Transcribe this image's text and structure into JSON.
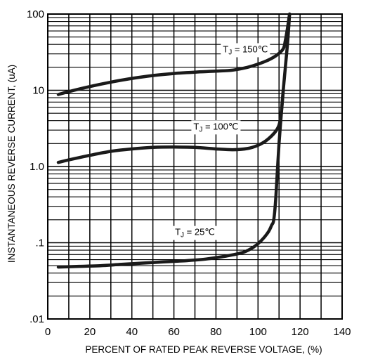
{
  "chart_data": {
    "type": "line",
    "title": "",
    "xlabel": "PERCENT OF RATED PEAK REVERSE VOLTAGE, (%)",
    "ylabel": "INSTANTANEOUS REVERSE CURRENT, (uA)",
    "xlim": [
      0,
      140
    ],
    "ylim": [
      0.01,
      100
    ],
    "yscale": "log",
    "grid": true,
    "x_ticks": [
      0,
      20,
      40,
      60,
      80,
      100,
      120,
      140
    ],
    "x_tick_labels": [
      "0",
      "20",
      "40",
      "60",
      "80",
      "100",
      "120",
      "140"
    ],
    "y_ticks": [
      0.01,
      0.1,
      1,
      10,
      100
    ],
    "y_tick_labels": [
      ".01",
      ".1",
      "1.0",
      "10",
      "100"
    ],
    "curve_labels": [
      {
        "pre": "T",
        "sub": "J",
        "post": " = 150℃",
        "x": 94,
        "y": 35
      },
      {
        "pre": "T",
        "sub": "J",
        "post": " = 100℃",
        "x": 80,
        "y": 3.4
      },
      {
        "pre": "T",
        "sub": "J",
        "post": " = 25℃",
        "x": 70,
        "y": 0.14
      }
    ],
    "series": [
      {
        "x": [
          5,
          10,
          20,
          30,
          40,
          50,
          60,
          70,
          80,
          88,
          95,
          100,
          105,
          109,
          112,
          113,
          114,
          115
        ],
        "y": [
          8.8,
          9.6,
          11.2,
          12.8,
          14.3,
          15.6,
          16.6,
          17.3,
          17.8,
          18.4,
          20,
          22,
          25,
          29,
          35,
          45,
          65,
          100
        ]
      },
      {
        "x": [
          5,
          10,
          20,
          30,
          40,
          50,
          60,
          70,
          80,
          88,
          95,
          100,
          104,
          108,
          110,
          111,
          112
        ],
        "y": [
          1.13,
          1.22,
          1.4,
          1.58,
          1.7,
          1.78,
          1.8,
          1.78,
          1.7,
          1.66,
          1.72,
          1.9,
          2.2,
          2.8,
          3.5,
          5,
          10
        ]
      },
      {
        "x": [
          5,
          15,
          25,
          35,
          45,
          55,
          65,
          75,
          85,
          93,
          98,
          102,
          105,
          106.5,
          107.5,
          108.5,
          110,
          112,
          114,
          115
        ],
        "y": [
          0.048,
          0.049,
          0.05,
          0.052,
          0.054,
          0.056,
          0.058,
          0.061,
          0.067,
          0.075,
          0.088,
          0.11,
          0.14,
          0.17,
          0.2,
          0.4,
          2,
          10,
          40,
          100
        ]
      }
    ]
  }
}
